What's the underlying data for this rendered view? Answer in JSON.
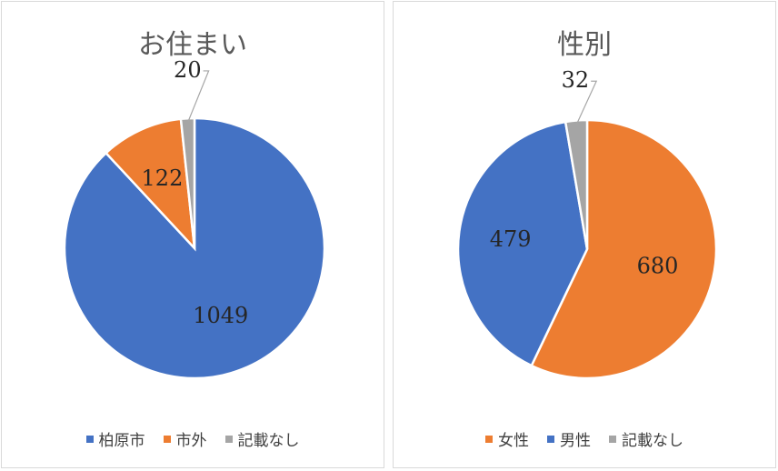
{
  "chart_data": [
    {
      "type": "pie",
      "title": "お住まい",
      "categories": [
        "柏原市",
        "市外",
        "記載なし"
      ],
      "values": [
        1049,
        122,
        20
      ],
      "colors": [
        "#4472C4",
        "#ED7D31",
        "#A5A5A5"
      ],
      "legend": "bottom"
    },
    {
      "type": "pie",
      "title": "性別",
      "categories": [
        "女性",
        "男性",
        "記載なし"
      ],
      "values": [
        680,
        479,
        32
      ],
      "colors": [
        "#ED7D31",
        "#4472C4",
        "#A5A5A5"
      ],
      "legend": "bottom"
    }
  ]
}
